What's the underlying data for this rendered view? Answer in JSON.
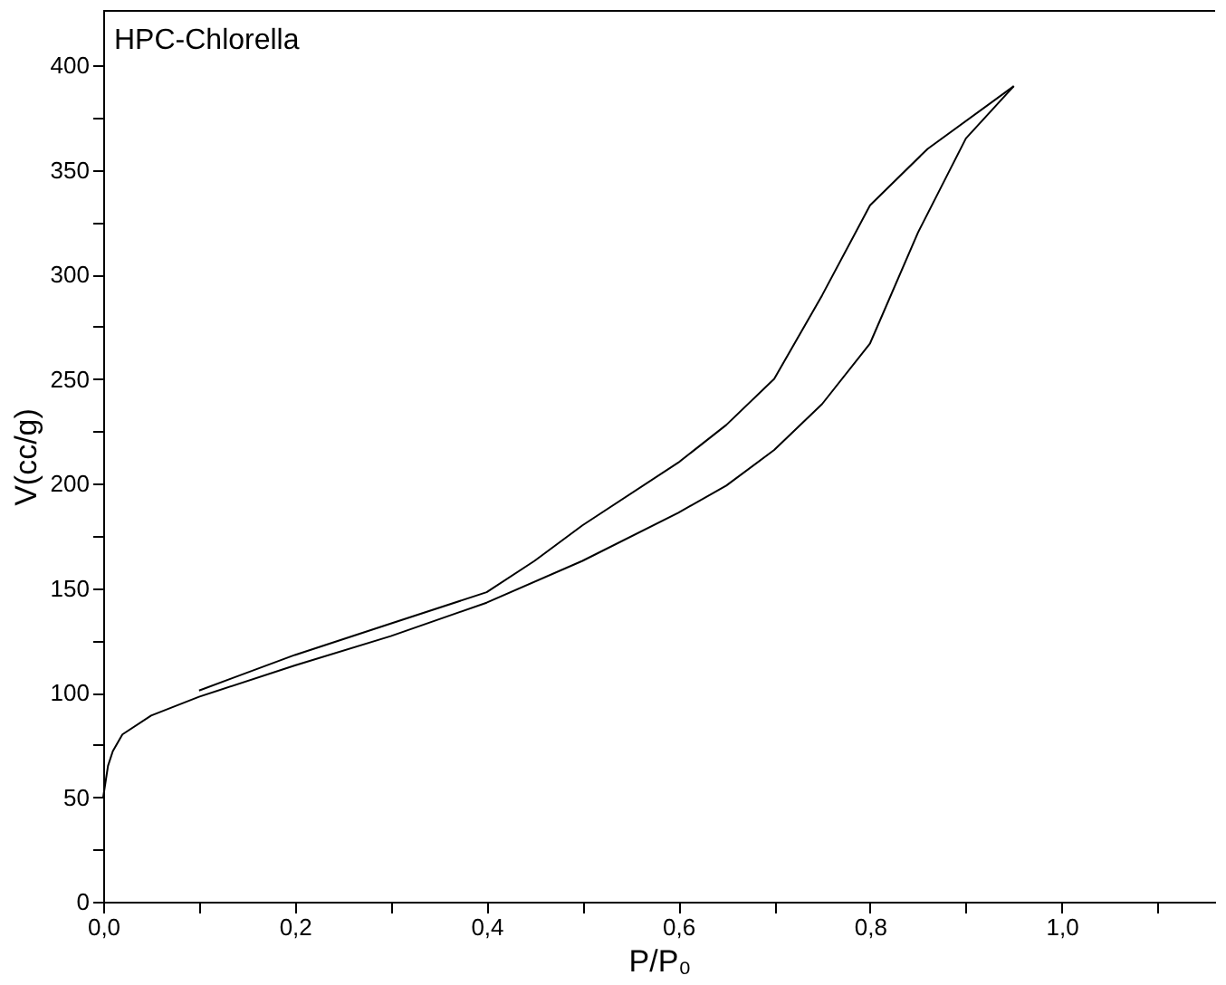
{
  "chart_data": {
    "type": "line",
    "title": "HPC-Chlorella",
    "xlabel": "P/P₀",
    "ylabel": "V(cc/g)",
    "xlim": [
      0,
      1.16
    ],
    "ylim": [
      0,
      426
    ],
    "xticks": [
      {
        "value": 0,
        "label": "0,0"
      },
      {
        "value": 0.1,
        "label": null
      },
      {
        "value": 0.2,
        "label": "0,2"
      },
      {
        "value": 0.3,
        "label": null
      },
      {
        "value": 0.4,
        "label": "0,4"
      },
      {
        "value": 0.5,
        "label": null
      },
      {
        "value": 0.6,
        "label": "0,6"
      },
      {
        "value": 0.7,
        "label": null
      },
      {
        "value": 0.8,
        "label": "0,8"
      },
      {
        "value": 0.9,
        "label": null
      },
      {
        "value": 1.0,
        "label": "1,0"
      },
      {
        "value": 1.1,
        "label": null
      }
    ],
    "yticks": [
      0,
      {
        "value": 25,
        "label": null
      },
      50,
      {
        "value": 75,
        "label": null
      },
      100,
      {
        "value": 125,
        "label": null
      },
      150,
      {
        "value": 175,
        "label": null
      },
      200,
      {
        "value": 225,
        "label": null
      },
      250,
      {
        "value": 275,
        "label": null
      },
      300,
      {
        "value": 325,
        "label": null
      },
      350,
      {
        "value": 375,
        "label": null
      },
      400
    ],
    "grid": false,
    "marker": "none",
    "line_style": "solid",
    "series": [
      {
        "color": "#000000",
        "x": [
          0,
          0.005,
          0.01,
          0.02,
          0.05,
          0.1,
          0.2,
          0.3,
          0.4,
          0.5,
          0.6,
          0.65,
          0.7,
          0.75,
          0.8,
          0.85,
          0.9,
          0.95
        ],
        "values": [
          50,
          65,
          72,
          80,
          89,
          98,
          113,
          127,
          143,
          163,
          186,
          199,
          216,
          238,
          267,
          320,
          365,
          390
        ]
      },
      {
        "color": "#000000",
        "x": [
          0.95,
          0.86,
          0.8,
          0.75,
          0.7,
          0.65,
          0.6,
          0.5,
          0.45,
          0.4,
          0.3,
          0.2,
          0.1
        ],
        "values": [
          390,
          360,
          333,
          290,
          250,
          228,
          210,
          180,
          163,
          148,
          133,
          118,
          101
        ]
      }
    ]
  }
}
